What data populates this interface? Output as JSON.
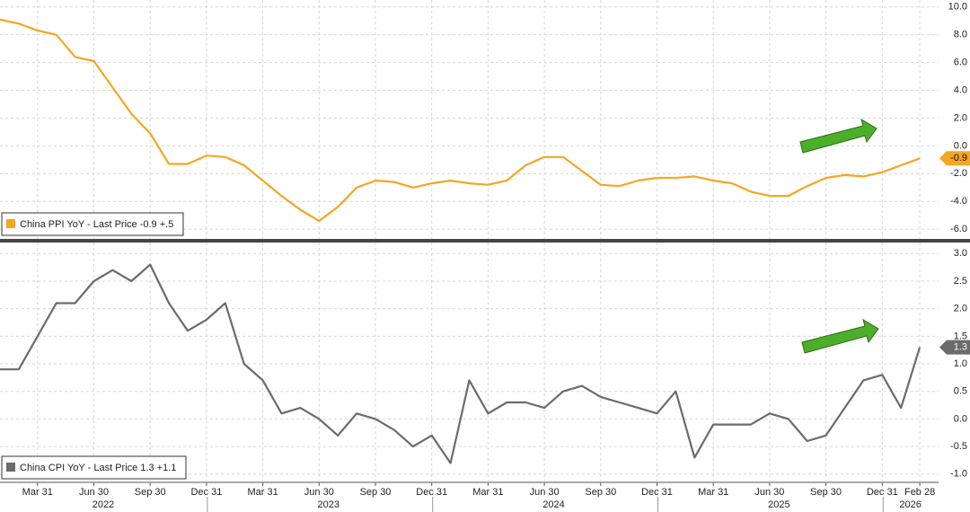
{
  "chart_data": [
    {
      "type": "line",
      "series": [
        {
          "name": "China PPI YoY - Last Price -0.9 +.5",
          "color": "#f5a623",
          "values": [
            9.1,
            8.8,
            8.3,
            8.0,
            6.4,
            6.1,
            4.2,
            2.3,
            0.9,
            -1.3,
            -1.3,
            -0.7,
            -0.8,
            -1.4,
            -2.5,
            -3.6,
            -4.6,
            -5.4,
            -4.4,
            -3.0,
            -2.5,
            -2.6,
            -3.0,
            -2.7,
            -2.5,
            -2.7,
            -2.8,
            -2.5,
            -1.4,
            -0.8,
            -0.8,
            -1.8,
            -2.8,
            -2.9,
            -2.5,
            -2.3,
            -2.3,
            -2.2,
            -2.5,
            -2.7,
            -3.3,
            -3.6,
            -3.6,
            -2.9,
            -2.3,
            -2.1,
            -2.2,
            -1.9,
            -1.4,
            -0.9
          ]
        }
      ],
      "last_label": "-0.9",
      "ylim": [
        -6.7,
        10.5
      ],
      "yticks": [
        {
          "value": 10,
          "label": "10.0"
        },
        {
          "value": 8,
          "label": "8.0"
        },
        {
          "value": 6,
          "label": "6.0"
        },
        {
          "value": 4,
          "label": "4.0"
        },
        {
          "value": 2,
          "label": "2.0"
        },
        {
          "value": 0,
          "label": "0.0"
        },
        {
          "value": -2,
          "label": "-2.0"
        },
        {
          "value": -4,
          "label": "-4.0"
        },
        {
          "value": -6,
          "label": "-6.0"
        }
      ],
      "grid": true
    },
    {
      "type": "line",
      "series": [
        {
          "name": "China CPI YoY - Last Price 1.3 +1.1",
          "color": "#6b6b6b",
          "values": [
            0.9,
            0.9,
            1.5,
            2.1,
            2.1,
            2.5,
            2.7,
            2.5,
            2.8,
            2.1,
            1.6,
            1.8,
            2.1,
            1.0,
            0.7,
            0.1,
            0.2,
            0.0,
            -0.3,
            0.1,
            0.0,
            -0.2,
            -0.5,
            -0.3,
            -0.8,
            0.7,
            0.1,
            0.3,
            0.3,
            0.2,
            0.5,
            0.6,
            0.4,
            0.3,
            0.2,
            0.1,
            0.5,
            -0.7,
            -0.1,
            -0.1,
            -0.1,
            0.1,
            0.0,
            -0.4,
            -0.3,
            0.2,
            0.7,
            0.8,
            0.2,
            1.3
          ]
        }
      ],
      "last_label": "1.3",
      "ylim": [
        -1.15,
        3.2
      ],
      "yticks": [
        {
          "value": 3,
          "label": "3.0"
        },
        {
          "value": 2.5,
          "label": "2.5"
        },
        {
          "value": 2,
          "label": "2.0"
        },
        {
          "value": 1.5,
          "label": "1.5"
        },
        {
          "value": 1,
          "label": "1.0"
        },
        {
          "value": 0.5,
          "label": "0.5"
        },
        {
          "value": 0,
          "label": "0.0"
        },
        {
          "value": -0.5,
          "label": "-0.5"
        },
        {
          "value": -1,
          "label": "-1.0"
        }
      ],
      "grid": true,
      "categories": [
        null,
        null,
        "Mar 31",
        null,
        null,
        "Jun 30",
        null,
        null,
        "Sep 30",
        null,
        null,
        "Dec 31",
        null,
        null,
        "Mar 31",
        null,
        null,
        "Jun 30",
        null,
        null,
        "Sep 30",
        null,
        null,
        "Dec 31",
        null,
        null,
        "Mar 31",
        null,
        null,
        "Jun 30",
        null,
        null,
        "Sep 30",
        null,
        null,
        "Dec 31",
        null,
        null,
        "Mar 31",
        null,
        null,
        "Jun 30",
        null,
        null,
        "Sep 30",
        null,
        null,
        "Dec 31",
        null,
        "Feb 28"
      ],
      "years": [
        "2022",
        "2023",
        "2024",
        "2025",
        "2026"
      ]
    }
  ]
}
